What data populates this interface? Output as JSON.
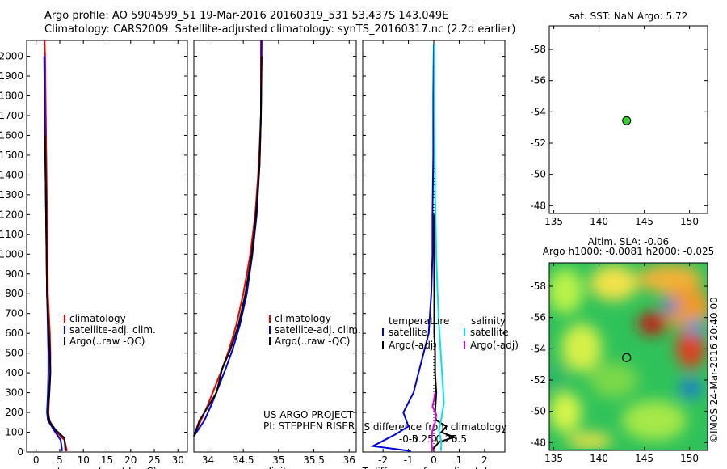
{
  "header": {
    "line1": "Argo profile: AO 5904599_51 19-Mar-2016 20160319_531 53.437S 143.049E",
    "line2": "Climatology: CARS2009. Satellite-adjusted climatology: synTS_20160317.nc (2.2d earlier)"
  },
  "colors": {
    "climatology": "#ee0000",
    "satellite": "#0000dd",
    "argo": "#000000",
    "sal_satellite": "#00e6e6",
    "sal_argo": "#e000e0",
    "marker_green": "#33cc33"
  },
  "chart_data": [
    {
      "id": "temperature",
      "type": "line",
      "xlabel": "temperature (deg C)",
      "ylabel": "",
      "xlim": [
        -2,
        32
      ],
      "ylim": [
        2080,
        0
      ],
      "xticks": [
        0,
        5,
        10,
        15,
        20,
        25,
        30
      ],
      "xticklabels": [
        "0",
        "5",
        "10",
        "15",
        "20",
        "25",
        "30"
      ],
      "yticks": [
        0,
        100,
        200,
        300,
        400,
        500,
        600,
        700,
        800,
        900,
        1000,
        1100,
        1200,
        1300,
        1400,
        1500,
        1600,
        1700,
        1800,
        1900,
        2000
      ],
      "yticklabels": [
        "0",
        "100",
        "200",
        "300",
        "400",
        "500",
        "600",
        "700",
        "800",
        "900",
        "1000",
        "1100",
        "1200",
        "1300",
        "1400",
        "1500",
        "1600",
        "1700",
        "1800",
        "1900",
        "2000"
      ],
      "legend": [
        "climatology",
        "satellite-adj. clim.",
        "Argo(..raw -QC)"
      ],
      "series": [
        {
          "name": "climatology",
          "color": "#ee0000",
          "x": [
            6.5,
            6.0,
            4.0,
            2.8,
            2.6,
            2.8,
            3.0,
            3.0,
            2.9,
            2.7,
            2.5,
            2.4,
            2.3,
            2.2,
            2.1,
            2.0,
            1.9,
            1.8
          ],
          "y": [
            5,
            60,
            110,
            160,
            200,
            300,
            400,
            500,
            600,
            700,
            800,
            1000,
            1200,
            1400,
            1600,
            1800,
            2000,
            2080
          ]
        },
        {
          "name": "satellite-adj. clim.",
          "color": "#0000dd",
          "x": [
            5.5,
            5.2,
            3.8,
            2.5,
            2.3,
            2.5,
            2.6,
            2.6,
            2.5,
            2.4,
            2.3,
            2.2,
            2.1,
            2.0,
            1.9,
            1.8,
            1.7
          ],
          "y": [
            5,
            60,
            110,
            160,
            200,
            300,
            400,
            500,
            600,
            700,
            800,
            1000,
            1200,
            1400,
            1600,
            1800,
            2000
          ]
        },
        {
          "name": "Argo(..raw -QC)",
          "color": "#000000",
          "x": [
            6.2,
            6.0,
            4.2,
            2.9,
            2.5,
            2.8,
            3.0,
            2.9,
            2.7,
            2.5,
            2.3,
            2.2,
            2.1,
            2.0,
            1.9
          ],
          "y": [
            5,
            70,
            110,
            150,
            200,
            300,
            400,
            500,
            600,
            700,
            800,
            1000,
            1200,
            1400,
            1600
          ]
        }
      ]
    },
    {
      "id": "salinity",
      "type": "line",
      "xlabel": "salinity",
      "xlim": [
        33.8,
        36.1
      ],
      "ylim": [
        2080,
        0
      ],
      "xticks": [
        34,
        34.5,
        35,
        35.5,
        36
      ],
      "xticklabels": [
        "34",
        "34.5",
        "35",
        "35.5",
        "36"
      ],
      "legend": [
        "climatology",
        "satellite-adj. clim.",
        "Argo(..raw -QC)"
      ],
      "series": [
        {
          "name": "climatology",
          "color": "#ee0000",
          "x": [
            33.8,
            33.9,
            34.0,
            34.1,
            34.2,
            34.3,
            34.4,
            34.5,
            34.6,
            34.67,
            34.72,
            34.75,
            34.75
          ],
          "y": [
            80,
            160,
            240,
            330,
            420,
            520,
            640,
            800,
            1000,
            1200,
            1450,
            1700,
            2080
          ]
        },
        {
          "name": "satellite-adj. clim.",
          "color": "#0000dd",
          "x": [
            33.8,
            33.95,
            34.05,
            34.15,
            34.25,
            34.35,
            34.45,
            34.55,
            34.63,
            34.69,
            34.73,
            34.75,
            34.76
          ],
          "y": [
            80,
            160,
            240,
            330,
            420,
            520,
            640,
            800,
            1000,
            1200,
            1450,
            1700,
            2080
          ]
        },
        {
          "name": "Argo(..raw -QC)",
          "color": "#000000",
          "x": [
            33.8,
            33.88,
            33.95,
            34.12,
            34.2,
            34.32,
            34.43,
            34.53,
            34.62,
            34.68,
            34.73,
            34.75,
            34.76
          ],
          "y": [
            80,
            160,
            200,
            300,
            420,
            520,
            640,
            800,
            1000,
            1200,
            1450,
            1700,
            2000
          ]
        }
      ],
      "annotations": [
        "US ARGO PROJECT",
        "PI: STEPHEN RISER"
      ]
    },
    {
      "id": "difference",
      "type": "line",
      "xlabel": "T difference from climatology",
      "top_xlabel": "S difference from climatology",
      "xlim": [
        -2.8,
        2.8
      ],
      "ylim": [
        2080,
        0
      ],
      "xticks": [
        -2,
        -1,
        0,
        1,
        2
      ],
      "xticklabels": [
        "-2",
        "-1",
        "0",
        "1",
        "2"
      ],
      "top_xticks": [
        -0.5,
        -0.25,
        0,
        0.25,
        0.5
      ],
      "top_xticklabels": [
        "-0.5",
        "-0.25",
        "0",
        "0.25",
        "0.5"
      ],
      "legend_left_title": "temperature",
      "legend_right_title": "salinity",
      "legend_left": [
        "satellite",
        "Argo(-adj)"
      ],
      "legend_right": [
        "satellite",
        "Argo(-adj)"
      ],
      "series": [
        {
          "name": "T satellite",
          "color": "#0000dd",
          "x": [
            -0.9,
            -2.4,
            -1.5,
            -1.0,
            -1.2,
            -0.8,
            -0.6,
            -0.4,
            -0.2,
            -0.15,
            -0.1,
            -0.05,
            -0.05,
            -0.02,
            -0.02,
            0
          ],
          "y": [
            5,
            30,
            90,
            130,
            200,
            300,
            400,
            500,
            600,
            700,
            800,
            1000,
            1200,
            1500,
            1800,
            2060
          ]
        },
        {
          "name": "T Argo(-adj)",
          "color": "#000000",
          "x": [
            -0.1,
            0.2,
            0.8,
            0.3,
            0.5,
            0.1,
            0.05,
            0.1,
            0.05,
            0.05,
            0.02,
            0.02,
            0.01,
            0.01
          ],
          "y": [
            5,
            50,
            75,
            100,
            130,
            160,
            200,
            300,
            400,
            500,
            600,
            800,
            1000,
            1200
          ]
        },
        {
          "name": "S satellite",
          "color": "#00e6e6",
          "x": [
            0.28,
            0.3,
            0.2,
            0.3,
            0.4,
            0.35,
            0.3,
            0.25,
            0.2,
            0.15,
            0.1,
            0.05,
            0.03,
            0.02
          ],
          "y": [
            5,
            50,
            110,
            170,
            250,
            350,
            450,
            550,
            650,
            800,
            1000,
            1300,
            1700,
            2060
          ]
        },
        {
          "name": "S Argo(-adj)",
          "color": "#e000e0",
          "x": [
            -0.05,
            -0.1,
            -0.05,
            0.05,
            0.1,
            -0.05,
            0.02,
            0.05
          ],
          "y": [
            5,
            60,
            110,
            150,
            190,
            230,
            270,
            300
          ]
        }
      ]
    },
    {
      "id": "sst-map",
      "type": "scatter",
      "title": "sat. SST: NaN Argo: 5.72",
      "xlim": [
        134.5,
        152
      ],
      "ylim": [
        -59.5,
        -47.5
      ],
      "xticks": [
        135,
        140,
        145,
        150
      ],
      "xticklabels": [
        "135",
        "140",
        "145",
        "150"
      ],
      "yticks": [
        -48,
        -50,
        -52,
        -54,
        -56,
        -58
      ],
      "yticklabels": [
        "-48",
        "-50",
        "-52",
        "-54",
        "-56",
        "-58"
      ],
      "points": [
        {
          "x": 143.049,
          "y": -53.437
        }
      ]
    },
    {
      "id": "sla-map",
      "type": "heatmap",
      "title": "Altim. SLA: -0.06",
      "subtitle": "Argo h1000: -0.0081 h2000: -0.025",
      "xlim": [
        134.5,
        152
      ],
      "ylim": [
        -59.5,
        -47.5
      ],
      "xticks": [
        135,
        140,
        145,
        150
      ],
      "xticklabels": [
        "135",
        "140",
        "145",
        "150"
      ],
      "yticks": [
        -48,
        -50,
        -52,
        -54,
        -56,
        -58
      ],
      "yticklabels": [
        "-48",
        "-50",
        "-52",
        "-54",
        "-56",
        "-58"
      ],
      "points": [
        {
          "x": 143.049,
          "y": -53.437
        }
      ]
    }
  ],
  "credit": "©IMOS 24-Mar-2016 20:40:00"
}
